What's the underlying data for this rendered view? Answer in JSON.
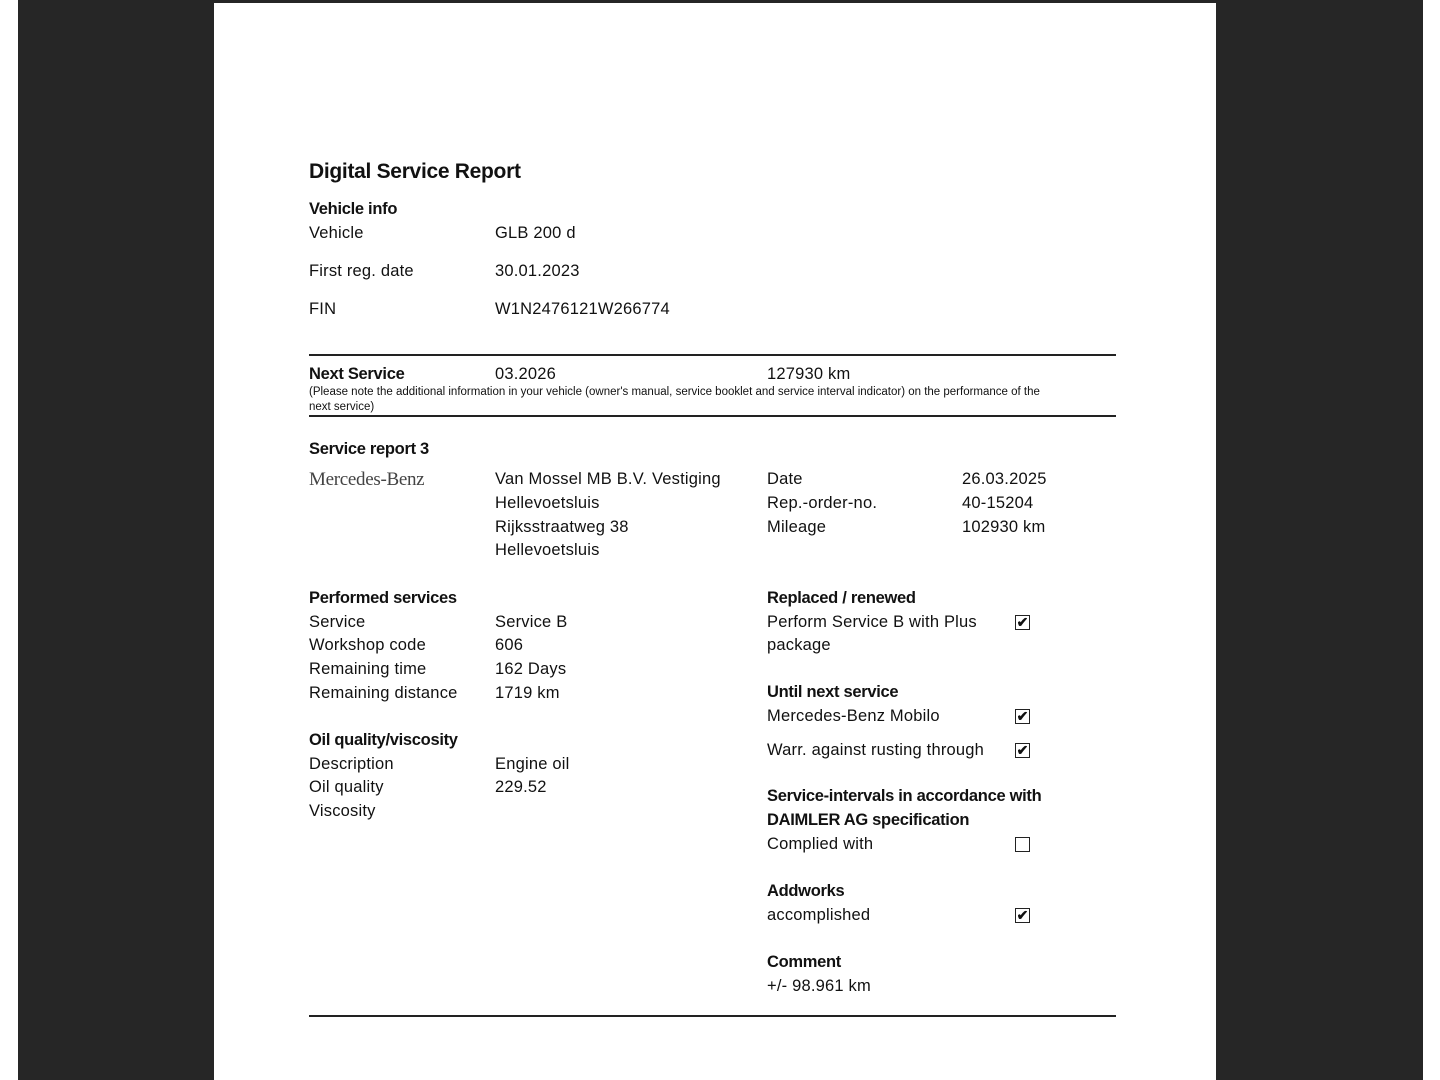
{
  "title": "Digital Service Report",
  "vehicle_info": {
    "heading": "Vehicle info",
    "rows": [
      {
        "label": "Vehicle",
        "value": "GLB 200 d"
      },
      {
        "label": "First reg. date",
        "value": "30.01.2023"
      },
      {
        "label": "FIN",
        "value": "W1N2476121W266774"
      }
    ]
  },
  "next_service": {
    "heading": "Next Service",
    "date": "03.2026",
    "mileage": "127930 km",
    "note": "(Please note the additional information in your vehicle (owner's manual, service booklet and service interval indicator) on the performance of the",
    "note2": "next service)"
  },
  "report": {
    "heading": "Service report 3",
    "logo": "Mercedes-Benz",
    "dealer": [
      "Van Mossel MB B.V. Vestiging",
      "Hellevoetsluis",
      "Rijksstraatweg 38",
      "Hellevoetsluis"
    ],
    "meta": [
      {
        "label": "Date",
        "value": "26.03.2025"
      },
      {
        "label": "Rep.-order-no.",
        "value": "40-15204"
      },
      {
        "label": "Mileage",
        "value": "102930 km"
      }
    ]
  },
  "performed": {
    "heading": "Performed services",
    "rows": [
      {
        "label": "Service",
        "value": "Service B"
      },
      {
        "label": "Workshop code",
        "value": "606"
      },
      {
        "label": "Remaining time",
        "value": "162 Days"
      },
      {
        "label": "Remaining distance",
        "value": "1719 km"
      }
    ]
  },
  "oil": {
    "heading": "Oil quality/viscosity",
    "rows": [
      {
        "label": "Description",
        "value": "Engine oil"
      },
      {
        "label": "Oil quality",
        "value": "229.52"
      },
      {
        "label": "Viscosity",
        "value": ""
      }
    ]
  },
  "replaced": {
    "heading": "Replaced / renewed",
    "item1": "Perform Service B with Plus",
    "item2": "package",
    "checked": true
  },
  "until_next": {
    "heading": "Until next service",
    "items": [
      {
        "label": "Mercedes-Benz Mobilo",
        "checked": true
      },
      {
        "label": "Warr. against rusting through",
        "checked": true
      }
    ]
  },
  "intervals": {
    "heading1": "Service-intervals in accordance with",
    "heading2": "DAIMLER AG specification",
    "label": "Complied with",
    "checked": false
  },
  "addworks": {
    "heading": "Addworks",
    "label": "accomplished",
    "checked": true
  },
  "comment": {
    "heading": "Comment",
    "text": "+/- 98.961 km"
  },
  "check_glyph": "✔"
}
